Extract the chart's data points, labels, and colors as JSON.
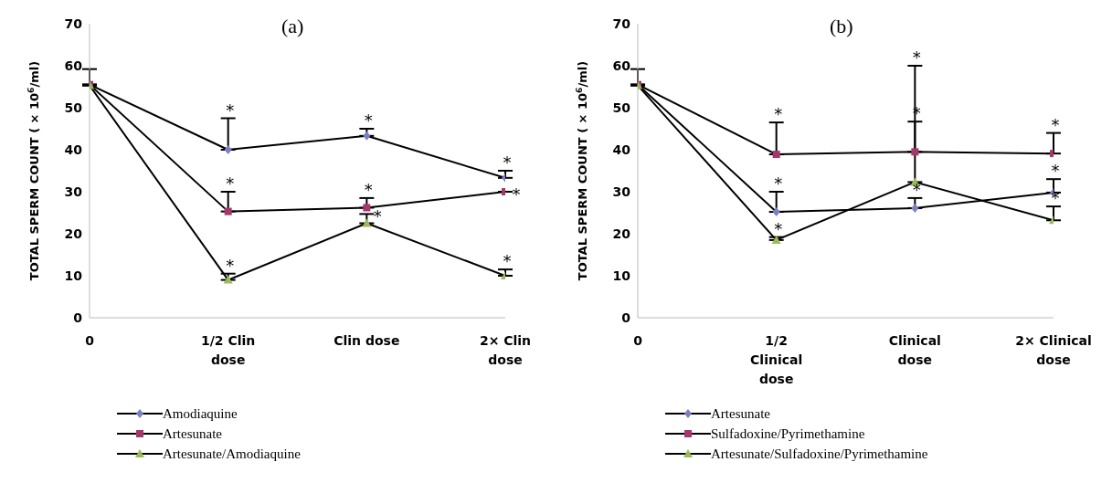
{
  "chart_data": [
    {
      "type": "line",
      "title": "(a)",
      "ylabel": "TOTAL SPERM COUNT ( × 10$^{6}$/ml)",
      "categories": [
        "0",
        "1/2 Clin dose",
        "Clin dose",
        "2× Clin dose"
      ],
      "ylim": [
        0,
        70
      ],
      "yticks": [
        0,
        10,
        20,
        30,
        40,
        50,
        60,
        70
      ],
      "legend": "bottom",
      "line_style": "solid",
      "series": [
        {
          "name": "Amodiaquine",
          "color": "#7b7fc4",
          "marker": "diamond",
          "values": [
            55.5,
            40,
            43.3,
            33.3
          ],
          "errors": [
            [
              55.5,
              59.2
            ],
            [
              40,
              47.5
            ],
            [
              43.3,
              45
            ],
            [
              33.3,
              35
            ]
          ]
        },
        {
          "name": "Artesunate",
          "color": "#a5376b",
          "marker": "square",
          "values": [
            55.5,
            25.3,
            26.2,
            30
          ],
          "errors": [
            null,
            [
              25.3,
              30
            ],
            [
              26.2,
              28.5
            ],
            null
          ]
        },
        {
          "name": "Artesunate/Amodiaquine",
          "color": "#9bbb59",
          "marker": "triangle",
          "values": [
            55.3,
            9,
            22.5,
            10
          ],
          "errors": [
            null,
            [
              9,
              10.5
            ],
            [
              22.5,
              24.7
            ],
            [
              10,
              11.5
            ]
          ]
        }
      ],
      "annotations": [
        {
          "text": "*",
          "x": "1/2 Clin dose",
          "y": 47.5
        },
        {
          "text": "*",
          "x": "1/2 Clin dose",
          "y": 30
        },
        {
          "text": "*",
          "x": "1/2 Clin dose",
          "y": 10.5
        },
        {
          "text": "*",
          "x": "Clin dose",
          "y": 45
        },
        {
          "text": "*",
          "x": "Clin dose",
          "y": 28.5
        },
        {
          "text": "*",
          "x": "Clin dose",
          "y": 24.7
        },
        {
          "text": "*",
          "x": "2× Clin dose",
          "y": 35
        },
        {
          "text": "*",
          "x": "2× Clin dose",
          "y": 30
        },
        {
          "text": "*",
          "x": "2× Clin dose",
          "y": 11.5
        }
      ]
    },
    {
      "type": "line",
      "title": "(b)",
      "ylabel": "TOTAL SPERM COUNT ( × 10$^{6}$/ml)",
      "categories": [
        "0",
        "1/2 Clinical dose",
        "Clinical dose",
        "2× Clinical dose"
      ],
      "ylim": [
        0,
        70
      ],
      "yticks": [
        0,
        10,
        20,
        30,
        40,
        50,
        60,
        70
      ],
      "legend": "bottom",
      "line_style": "solid",
      "series": [
        {
          "name": "Artesunate",
          "color": "#7b7fc4",
          "marker": "diamond",
          "values": [
            55.5,
            25.2,
            26.1,
            29.8
          ],
          "errors": [
            [
              55.5,
              59.2
            ],
            [
              25.2,
              30
            ],
            [
              26.1,
              28.5
            ],
            [
              29.8,
              33
            ]
          ]
        },
        {
          "name": "Sulfadoxine/Pyrimethamine",
          "color": "#a5376b",
          "marker": "square",
          "values": [
            55.5,
            38.9,
            39.5,
            39.1
          ],
          "errors": [
            null,
            [
              38.9,
              46.5
            ],
            [
              39.5,
              46.7
            ],
            [
              39.1,
              44
            ]
          ]
        },
        {
          "name": "Artesunate/Sulfadoxine/Pyrimethamine",
          "color": "#9bbb59",
          "marker": "triangle",
          "values": [
            55.3,
            18.5,
            32.3,
            23.2
          ],
          "errors": [
            null,
            [
              18.5,
              19.2
            ],
            [
              32.3,
              60
            ],
            [
              23.2,
              26.5
            ]
          ]
        }
      ],
      "annotations": [
        {
          "text": "*",
          "x": "1/2 Clinical dose",
          "y": 46.5
        },
        {
          "text": "*",
          "x": "1/2 Clinical dose",
          "y": 30
        },
        {
          "text": "*",
          "x": "1/2 Clinical dose",
          "y": 19.2
        },
        {
          "text": "*",
          "x": "Clinical dose",
          "y": 60
        },
        {
          "text": "*",
          "x": "Clinical dose",
          "y": 46.7
        },
        {
          "text": "*",
          "x": "Clinical dose",
          "y": 28.5
        },
        {
          "text": "*",
          "x": "2× Clinical dose",
          "y": 44
        },
        {
          "text": "*",
          "x": "2× Clinical dose",
          "y": 33
        },
        {
          "text": "*",
          "x": "2× Clinical dose",
          "y": 26.5
        }
      ]
    }
  ]
}
